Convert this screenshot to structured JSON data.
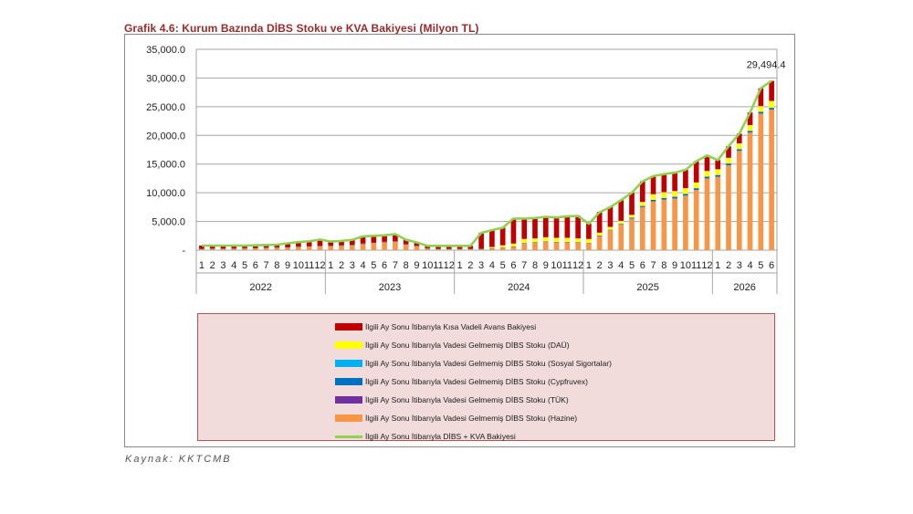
{
  "title": "Grafik 4.6: Kurum Bazında DİBS Stoku ve KVA Bakiyesi (Milyon TL)",
  "source": "Kaynak: KKTCMB",
  "colors": {
    "kva": "#c00000",
    "dau": "#ffff00",
    "sosyal": "#00b0f0",
    "cypfruvex": "#0070c0",
    "tuk": "#7030a0",
    "hazine": "#f79646",
    "total_line": "#92d050"
  },
  "chart_data": {
    "type": "bar",
    "stacked": true,
    "ylim": [
      0,
      35000
    ],
    "yticks": [
      0,
      5000,
      10000,
      15000,
      20000,
      25000,
      30000,
      35000
    ],
    "ytick_labels": [
      "-",
      "5,000.0",
      "10,000.0",
      "15,000.0",
      "20,000.0",
      "25,000.0",
      "30,000.0",
      "35,000.0"
    ],
    "years": [
      {
        "label": "2022",
        "months": 12
      },
      {
        "label": "2023",
        "months": 12
      },
      {
        "label": "2024",
        "months": 12
      },
      {
        "label": "2025",
        "months": 12
      },
      {
        "label": "2026",
        "months": 6
      }
    ],
    "annotation": "29,494.4",
    "series": [
      {
        "key": "hazine",
        "name": "İlgili Ay Sonu İtibarıyla Vadesi Gelmemiş DİBS Stoku (Hazine)",
        "values": [
          200,
          250,
          250,
          280,
          300,
          350,
          400,
          450,
          500,
          600,
          650,
          700,
          750,
          800,
          900,
          1100,
          1300,
          1400,
          1500,
          1000,
          700,
          300,
          200,
          200,
          200,
          200,
          200,
          300,
          400,
          600,
          1200,
          1300,
          1500,
          1400,
          1400,
          1300,
          1200,
          2500,
          3500,
          4500,
          5500,
          7500,
          8500,
          8800,
          9000,
          9500,
          10500,
          12500,
          12800,
          14800,
          17300,
          20500,
          23800,
          24500
        ]
      },
      {
        "key": "tuk",
        "name": "İlgili Ay Sonu İtibarıyla Vadesi Gelmemiş DİBS Stoku (TÜK)",
        "values": [
          0,
          0,
          0,
          0,
          0,
          0,
          0,
          0,
          0,
          0,
          0,
          0,
          0,
          0,
          0,
          0,
          0,
          0,
          0,
          0,
          0,
          0,
          0,
          0,
          0,
          0,
          0,
          0,
          0,
          0,
          0,
          0,
          0,
          0,
          0,
          0,
          0,
          0,
          0,
          0,
          0,
          0,
          0,
          0,
          0,
          0,
          0,
          0,
          0,
          0,
          0,
          0,
          0,
          0
        ]
      },
      {
        "key": "cypfruvex",
        "name": "İlgili Ay Sonu İtibarıyla Vadesi Gelmemiş DİBS Stoku (Cypfruvex)",
        "values": [
          50,
          50,
          50,
          50,
          50,
          50,
          50,
          50,
          50,
          50,
          50,
          50,
          50,
          50,
          50,
          50,
          50,
          50,
          50,
          50,
          50,
          50,
          50,
          50,
          50,
          50,
          50,
          50,
          50,
          50,
          50,
          50,
          50,
          50,
          50,
          50,
          50,
          50,
          50,
          100,
          150,
          200,
          250,
          300,
          300,
          300,
          300,
          300,
          300,
          300,
          300,
          300,
          300,
          300
        ]
      },
      {
        "key": "sosyal",
        "name": "İlgili Ay Sonu İtibarıyla Vadesi Gelmemiş DİBS Stoku (Sosyal Sigortalar)",
        "values": [
          0,
          0,
          0,
          0,
          0,
          0,
          0,
          0,
          0,
          0,
          0,
          0,
          0,
          0,
          0,
          0,
          0,
          0,
          0,
          0,
          0,
          0,
          0,
          0,
          0,
          0,
          0,
          0,
          0,
          0,
          0,
          0,
          0,
          0,
          0,
          0,
          0,
          0,
          0,
          0,
          0,
          0,
          0,
          0,
          0,
          0,
          0,
          0,
          0,
          0,
          0,
          0,
          0,
          0
        ]
      },
      {
        "key": "dau",
        "name": "İlgili Ay Sonu İtibarıyla Vadesi Gelmemiş DİBS Stoku (DAÜ)",
        "values": [
          0,
          0,
          0,
          0,
          0,
          0,
          0,
          0,
          0,
          0,
          0,
          0,
          0,
          0,
          0,
          0,
          0,
          0,
          0,
          0,
          0,
          0,
          0,
          0,
          0,
          0,
          0,
          200,
          400,
          500,
          700,
          700,
          700,
          700,
          700,
          700,
          700,
          500,
          500,
          500,
          500,
          700,
          1000,
          1000,
          1000,
          1000,
          1000,
          1000,
          1000,
          1000,
          1000,
          1000,
          1000,
          1200
        ]
      },
      {
        "key": "kva",
        "name": "İlgili Ay Sonu İtibarıyla Kısa Vadeli Avans Bakiyesi",
        "values": [
          550,
          500,
          500,
          470,
          450,
          450,
          450,
          450,
          650,
          750,
          850,
          1100,
          700,
          750,
          850,
          1250,
          1150,
          1150,
          1250,
          750,
          600,
          400,
          500,
          500,
          500,
          500,
          2750,
          2950,
          3050,
          4350,
          3550,
          3550,
          3550,
          3550,
          3750,
          3950,
          2650,
          3600,
          3500,
          3600,
          3850,
          3600,
          3150,
          3150,
          3200,
          3200,
          3700,
          2700,
          1600,
          2000,
          1700,
          2200,
          3100,
          3500
        ]
      },
      {
        "key": "total_line",
        "name": "İlgili Ay Sonu İtibarıyla DİBS + KVA Bakiyesi",
        "kind": "line",
        "values": [
          800,
          800,
          800,
          800,
          800,
          850,
          900,
          950,
          1200,
          1400,
          1550,
          1850,
          1500,
          1600,
          1800,
          2400,
          2500,
          2600,
          2800,
          1800,
          1350,
          750,
          750,
          750,
          750,
          750,
          3000,
          3500,
          3900,
          5500,
          5500,
          5600,
          5800,
          5700,
          5900,
          5950,
          4600,
          6600,
          7500,
          8700,
          10000,
          12000,
          12900,
          13250,
          13500,
          14000,
          15500,
          16500,
          15700,
          18100,
          20300,
          24000,
          28200,
          29494.4
        ]
      }
    ]
  },
  "legend_order": [
    "kva",
    "dau",
    "sosyal",
    "cypfruvex",
    "tuk",
    "hazine",
    "total_line"
  ]
}
